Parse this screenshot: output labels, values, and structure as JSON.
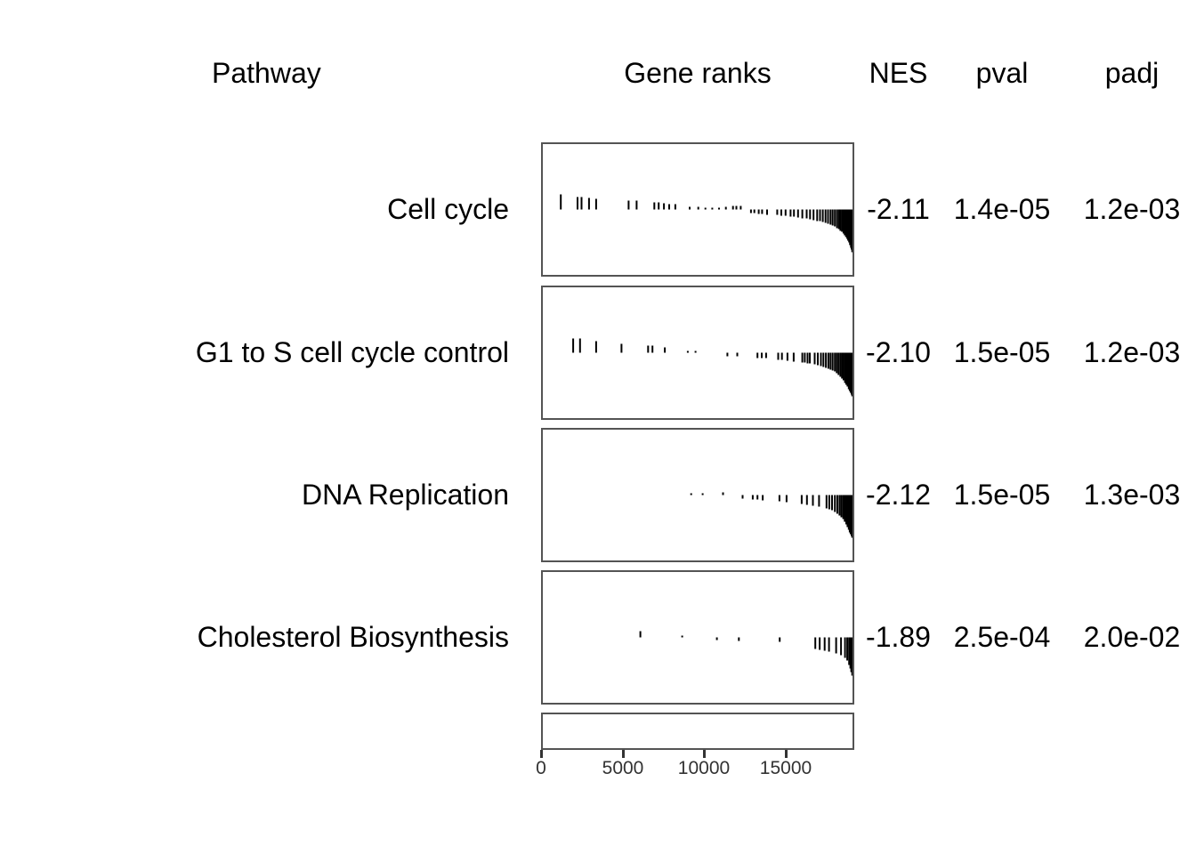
{
  "colors": {
    "background": "#ffffff",
    "box_border": "#545454",
    "tick": "#000000",
    "text": "#000000",
    "axis_text": "#333333"
  },
  "chart_data": {
    "type": "gsea-table",
    "columns": {
      "pathway": "Pathway",
      "gene_ranks": "Gene ranks",
      "nes": "NES",
      "pval": "pval",
      "padj": "padj"
    },
    "x_axis": {
      "tick_labels": [
        "0",
        "5000",
        "10000",
        "15000"
      ],
      "tick_values": [
        0,
        5000,
        10000,
        15000
      ],
      "range": [
        0,
        19200
      ]
    },
    "pathways": [
      {
        "name": "Cell cycle",
        "nes": "-2.11",
        "pval": "1.4e-05",
        "padj": "1.2e-03",
        "ticks": [
          [
            0.058,
            17
          ],
          [
            0.112,
            14
          ],
          [
            0.125,
            14
          ],
          [
            0.149,
            13
          ],
          [
            0.172,
            12
          ],
          [
            0.277,
            10
          ],
          [
            0.303,
            10
          ],
          [
            0.36,
            8
          ],
          [
            0.374,
            8
          ],
          [
            0.391,
            7
          ],
          [
            0.408,
            6
          ],
          [
            0.428,
            6
          ],
          [
            0.474,
            3
          ],
          [
            0.502,
            3
          ],
          [
            0.525,
            2
          ],
          [
            0.547,
            2
          ],
          [
            0.569,
            2
          ],
          [
            0.591,
            3
          ],
          [
            0.614,
            4
          ],
          [
            0.625,
            4
          ],
          [
            0.639,
            4
          ],
          [
            0.672,
            -4
          ],
          [
            0.683,
            -4
          ],
          [
            0.697,
            -5
          ],
          [
            0.708,
            -5
          ],
          [
            0.724,
            -6
          ],
          [
            0.757,
            -6
          ],
          [
            0.77,
            -7
          ],
          [
            0.784,
            -7
          ],
          [
            0.8,
            -8
          ],
          [
            0.811,
            -8
          ],
          [
            0.824,
            -9
          ],
          [
            0.838,
            -10
          ],
          [
            0.852,
            -10
          ],
          [
            0.863,
            -11
          ],
          [
            0.874,
            -12
          ],
          [
            0.886,
            -13
          ],
          [
            0.895,
            -13
          ],
          [
            0.904,
            -14
          ],
          [
            0.913,
            -15
          ],
          [
            0.921,
            -16
          ],
          [
            0.929,
            -17
          ],
          [
            0.936,
            -18
          ],
          [
            0.943,
            -19
          ],
          [
            0.95,
            -21
          ],
          [
            0.956,
            -22
          ],
          [
            0.961,
            -24
          ],
          [
            0.966,
            -25
          ],
          [
            0.971,
            -27
          ],
          [
            0.975,
            -29
          ],
          [
            0.979,
            -31
          ],
          [
            0.983,
            -33
          ],
          [
            0.986,
            -35
          ],
          [
            0.989,
            -37
          ],
          [
            0.992,
            -40
          ],
          [
            0.995,
            -43
          ],
          [
            0.997,
            -45
          ],
          [
            0.999,
            -48
          ]
        ]
      },
      {
        "name": "G1 to S cell cycle control",
        "nes": "-2.10",
        "pval": "1.5e-05",
        "padj": "1.2e-03",
        "ticks": [
          [
            0.098,
            16
          ],
          [
            0.12,
            16
          ],
          [
            0.172,
            13
          ],
          [
            0.254,
            10
          ],
          [
            0.34,
            8
          ],
          [
            0.354,
            8
          ],
          [
            0.394,
            6
          ],
          [
            0.468,
            2
          ],
          [
            0.493,
            2
          ],
          [
            0.596,
            -4
          ],
          [
            0.628,
            -4
          ],
          [
            0.693,
            -6
          ],
          [
            0.707,
            -6
          ],
          [
            0.721,
            -6
          ],
          [
            0.76,
            -8
          ],
          [
            0.772,
            -8
          ],
          [
            0.79,
            -9
          ],
          [
            0.81,
            -10
          ],
          [
            0.838,
            -11
          ],
          [
            0.846,
            -11
          ],
          [
            0.855,
            -12
          ],
          [
            0.862,
            -12
          ],
          [
            0.878,
            -13
          ],
          [
            0.888,
            -14
          ],
          [
            0.898,
            -15
          ],
          [
            0.906,
            -16
          ],
          [
            0.914,
            -17
          ],
          [
            0.922,
            -18
          ],
          [
            0.929,
            -19
          ],
          [
            0.936,
            -20
          ],
          [
            0.943,
            -21
          ],
          [
            0.949,
            -23
          ],
          [
            0.955,
            -25
          ],
          [
            0.961,
            -27
          ],
          [
            0.966,
            -29
          ],
          [
            0.971,
            -31
          ],
          [
            0.976,
            -34
          ],
          [
            0.98,
            -36
          ],
          [
            0.984,
            -38
          ],
          [
            0.988,
            -41
          ],
          [
            0.991,
            -43
          ],
          [
            0.994,
            -45
          ],
          [
            0.997,
            -47
          ],
          [
            0.999,
            -49
          ]
        ]
      },
      {
        "name": "DNA Replication",
        "nes": "-2.12",
        "pval": "1.5e-05",
        "padj": "1.3e-03",
        "ticks": [
          [
            0.479,
            2
          ],
          [
            0.516,
            2
          ],
          [
            0.582,
            3
          ],
          [
            0.645,
            -4
          ],
          [
            0.678,
            -5
          ],
          [
            0.693,
            -5
          ],
          [
            0.71,
            -6
          ],
          [
            0.764,
            -7
          ],
          [
            0.787,
            -8
          ],
          [
            0.836,
            -10
          ],
          [
            0.853,
            -11
          ],
          [
            0.872,
            -12
          ],
          [
            0.892,
            -13
          ],
          [
            0.916,
            -15
          ],
          [
            0.925,
            -16
          ],
          [
            0.934,
            -17
          ],
          [
            0.943,
            -19
          ],
          [
            0.951,
            -21
          ],
          [
            0.958,
            -23
          ],
          [
            0.964,
            -25
          ],
          [
            0.97,
            -27
          ],
          [
            0.975,
            -30
          ],
          [
            0.98,
            -33
          ],
          [
            0.984,
            -36
          ],
          [
            0.988,
            -39
          ],
          [
            0.991,
            -42
          ],
          [
            0.994,
            -44
          ],
          [
            0.997,
            -46
          ],
          [
            0.999,
            -48
          ]
        ]
      },
      {
        "name": "Cholesterol Biosynthesis",
        "nes": "-1.89",
        "pval": "2.5e-04",
        "padj": "2.0e-02",
        "ticks": [
          [
            0.315,
            7
          ],
          [
            0.45,
            2
          ],
          [
            0.562,
            -3
          ],
          [
            0.633,
            -4
          ],
          [
            0.765,
            -5
          ],
          [
            0.88,
            -13
          ],
          [
            0.894,
            -14
          ],
          [
            0.91,
            -15
          ],
          [
            0.924,
            -16
          ],
          [
            0.947,
            -18
          ],
          [
            0.963,
            -20
          ],
          [
            0.976,
            -23
          ],
          [
            0.983,
            -26
          ],
          [
            0.989,
            -31
          ],
          [
            0.993,
            -35
          ],
          [
            0.996,
            -39
          ],
          [
            0.999,
            -43
          ]
        ]
      }
    ]
  }
}
